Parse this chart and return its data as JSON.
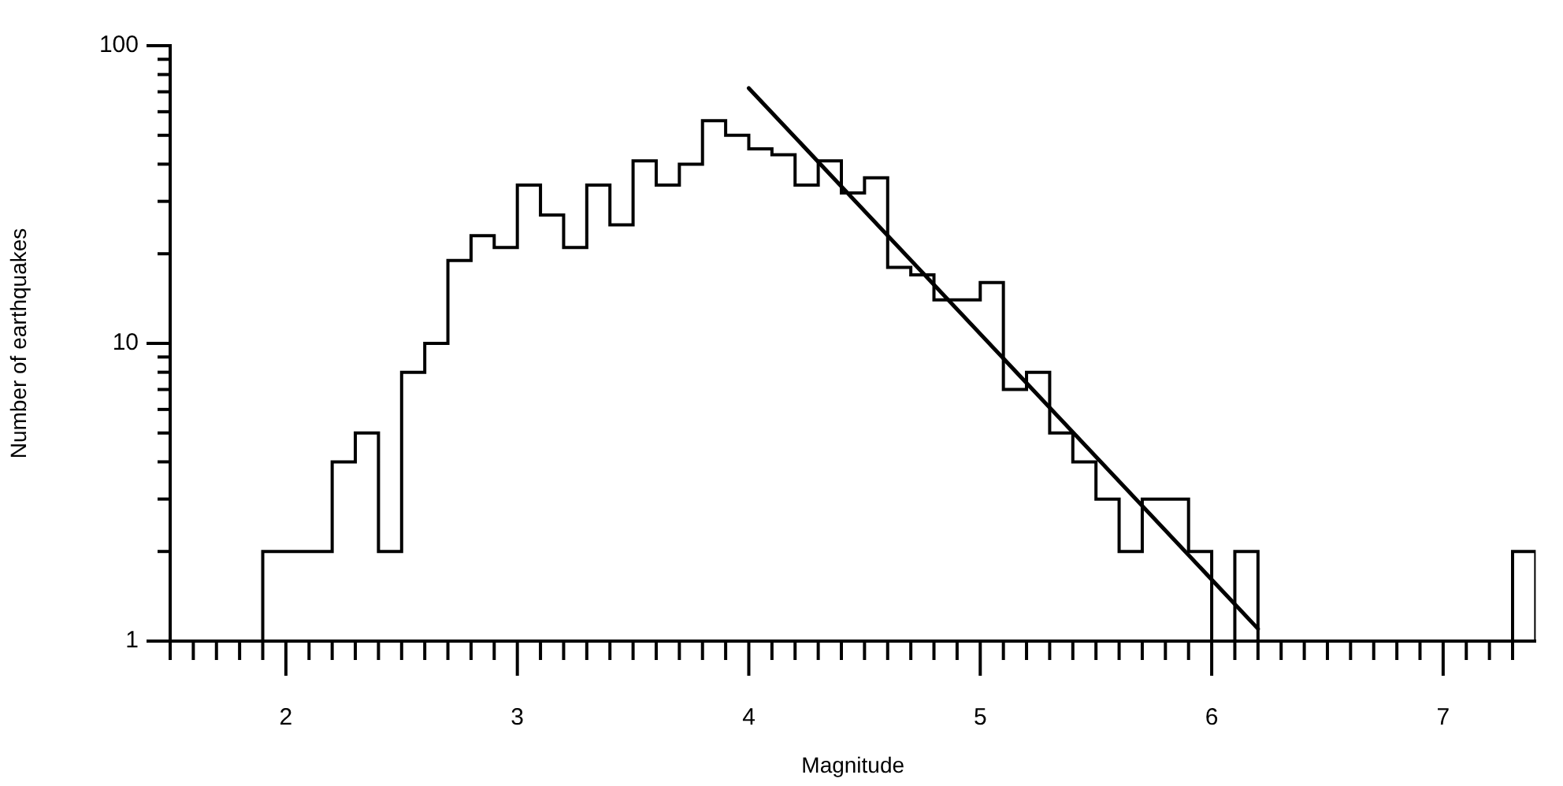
{
  "chart_data": {
    "type": "histogram",
    "xlabel": "Magnitude",
    "ylabel": "Number of earthquakes",
    "color": "#000000",
    "log": "y",
    "bins": [
      1.9,
      2.0,
      2.1,
      2.2,
      2.3,
      2.4,
      2.5,
      2.6,
      2.7,
      2.8,
      2.9,
      3.0,
      3.1,
      3.2,
      3.3,
      3.4,
      3.5,
      3.6,
      3.7,
      3.8,
      3.9,
      4.0,
      4.1,
      4.2,
      4.3,
      4.4,
      4.5,
      4.6,
      4.7,
      4.8,
      4.9,
      5.0,
      5.1,
      5.2,
      5.3,
      5.4,
      5.5,
      5.6,
      5.7,
      5.8,
      5.9,
      6.0,
      6.1,
      6.2,
      6.3,
      6.4,
      6.5,
      6.6,
      6.7,
      6.8,
      6.9,
      7.0,
      7.1,
      7.2,
      7.3,
      7.4
    ],
    "values": [
      2,
      2,
      2,
      4,
      5,
      2,
      8,
      10,
      19,
      23,
      21,
      34,
      27,
      21,
      34,
      25,
      41,
      34,
      40,
      56,
      50,
      45,
      43,
      34,
      41,
      32,
      36,
      18,
      17,
      14,
      14,
      16,
      7,
      8,
      5,
      4,
      3,
      2,
      3,
      3,
      2,
      null,
      2,
      null,
      null,
      null,
      null,
      null,
      null,
      null,
      null,
      null,
      null,
      null,
      2
    ],
    "series": [
      {
        "type": "line",
        "color": "#000000",
        "x": [
          4.0,
          6.2
        ],
        "values": [
          72,
          1.1
        ]
      }
    ],
    "xlim": [
      1.5,
      7.4
    ],
    "ylim": [
      1,
      100
    ],
    "xticks": [
      {
        "value": 1.5,
        "label": null
      },
      {
        "value": 1.6,
        "label": null
      },
      {
        "value": 1.7,
        "label": null
      },
      {
        "value": 1.8,
        "label": null
      },
      {
        "value": 1.9,
        "label": null
      },
      2,
      {
        "value": 2.1,
        "label": null
      },
      {
        "value": 2.2,
        "label": null
      },
      {
        "value": 2.3,
        "label": null
      },
      {
        "value": 2.4,
        "label": null
      },
      {
        "value": 2.5,
        "label": null
      },
      {
        "value": 2.6,
        "label": null
      },
      {
        "value": 2.7,
        "label": null
      },
      {
        "value": 2.8,
        "label": null
      },
      {
        "value": 2.9,
        "label": null
      },
      3,
      {
        "value": 3.1,
        "label": null
      },
      {
        "value": 3.2,
        "label": null
      },
      {
        "value": 3.3,
        "label": null
      },
      {
        "value": 3.4,
        "label": null
      },
      {
        "value": 3.5,
        "label": null
      },
      {
        "value": 3.6,
        "label": null
      },
      {
        "value": 3.7,
        "label": null
      },
      {
        "value": 3.8,
        "label": null
      },
      {
        "value": 3.9,
        "label": null
      },
      4,
      {
        "value": 4.1,
        "label": null
      },
      {
        "value": 4.2,
        "label": null
      },
      {
        "value": 4.3,
        "label": null
      },
      {
        "value": 4.4,
        "label": null
      },
      {
        "value": 4.5,
        "label": null
      },
      {
        "value": 4.6,
        "label": null
      },
      {
        "value": 4.7,
        "label": null
      },
      {
        "value": 4.8,
        "label": null
      },
      {
        "value": 4.9,
        "label": null
      },
      5,
      {
        "value": 5.1,
        "label": null
      },
      {
        "value": 5.2,
        "label": null
      },
      {
        "value": 5.3,
        "label": null
      },
      {
        "value": 5.4,
        "label": null
      },
      {
        "value": 5.5,
        "label": null
      },
      {
        "value": 5.6,
        "label": null
      },
      {
        "value": 5.7,
        "label": null
      },
      {
        "value": 5.8,
        "label": null
      },
      {
        "value": 5.9,
        "label": null
      },
      6,
      {
        "value": 6.1,
        "label": null
      },
      {
        "value": 6.2,
        "label": null
      },
      {
        "value": 6.3,
        "label": null
      },
      {
        "value": 6.4,
        "label": null
      },
      {
        "value": 6.5,
        "label": null
      },
      {
        "value": 6.6,
        "label": null
      },
      {
        "value": 6.7,
        "label": null
      },
      {
        "value": 6.8,
        "label": null
      },
      {
        "value": 6.9,
        "label": null
      },
      7,
      {
        "value": 7.1,
        "label": null
      },
      {
        "value": 7.2,
        "label": null
      },
      {
        "value": 7.3,
        "label": null
      }
    ],
    "yticks": [
      1,
      {
        "value": 2,
        "label": null
      },
      {
        "value": 3,
        "label": null
      },
      {
        "value": 4,
        "label": null
      },
      {
        "value": 5,
        "label": null
      },
      {
        "value": 6,
        "label": null
      },
      {
        "value": 7,
        "label": null
      },
      {
        "value": 8,
        "label": null
      },
      {
        "value": 9,
        "label": null
      },
      10,
      {
        "value": 20,
        "label": null
      },
      {
        "value": 30,
        "label": null
      },
      {
        "value": 40,
        "label": null
      },
      {
        "value": 50,
        "label": null
      },
      {
        "value": 60,
        "label": null
      },
      {
        "value": 70,
        "label": null
      },
      {
        "value": 80,
        "label": null
      },
      {
        "value": 90,
        "label": null
      },
      100
    ]
  }
}
